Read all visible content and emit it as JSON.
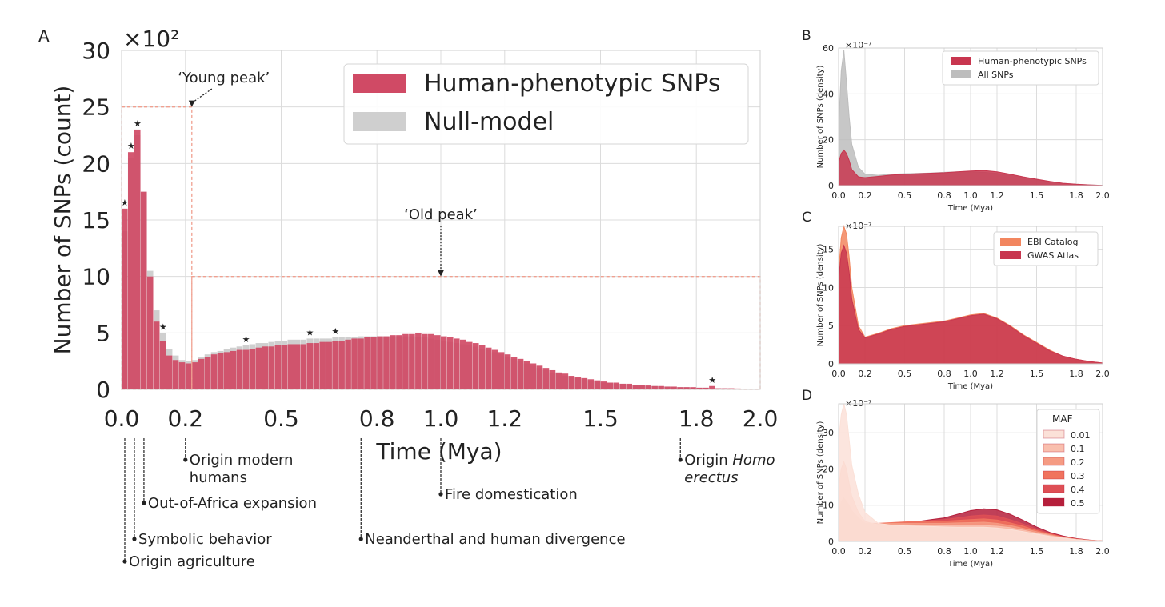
{
  "chart_data": [
    {
      "panel": "A",
      "type": "bar",
      "xlabel": "Time (Mya)",
      "ylabel": "Number of SNPs (count)",
      "y_scale_label": "×10²",
      "xlim": [
        0,
        2.0
      ],
      "ylim": [
        0,
        30
      ],
      "xticks": [
        0.0,
        0.2,
        0.5,
        0.8,
        1.0,
        1.2,
        1.5,
        1.8,
        2.0
      ],
      "xtick_labels": [
        "0.0",
        "0.2",
        "0.5",
        "0.8",
        "1.0",
        "1.2",
        "1.5",
        "1.8",
        "2.0"
      ],
      "yticks": [
        0,
        5,
        10,
        15,
        20,
        25,
        30
      ],
      "ytick_labels": [
        "0",
        "5",
        "10",
        "15",
        "20",
        "25",
        "30"
      ],
      "legend": [
        "Human-phenotypic SNPs",
        "Null-model"
      ],
      "bin_width": 0.02,
      "series": [
        {
          "name": "Human-phenotypic SNPs",
          "color": "#d04a65",
          "values": [
            16,
            21,
            23,
            17.5,
            10,
            6,
            4.3,
            3,
            2.6,
            2.4,
            2.3,
            2.4,
            2.7,
            2.9,
            3.1,
            3.2,
            3.3,
            3.4,
            3.5,
            3.5,
            3.6,
            3.7,
            3.8,
            3.8,
            3.9,
            3.9,
            4,
            4,
            4,
            4.1,
            4.1,
            4.2,
            4.2,
            4.3,
            4.3,
            4.4,
            4.5,
            4.5,
            4.6,
            4.6,
            4.7,
            4.7,
            4.8,
            4.8,
            4.9,
            4.9,
            5,
            4.9,
            4.9,
            4.8,
            4.7,
            4.6,
            4.5,
            4.4,
            4.2,
            4.1,
            3.9,
            3.7,
            3.5,
            3.3,
            3.1,
            2.9,
            2.7,
            2.5,
            2.3,
            2.1,
            1.9,
            1.7,
            1.5,
            1.4,
            1.2,
            1.1,
            1,
            0.9,
            0.8,
            0.7,
            0.6,
            0.6,
            0.5,
            0.5,
            0.4,
            0.4,
            0.35,
            0.3,
            0.3,
            0.25,
            0.25,
            0.2,
            0.2,
            0.2,
            0.15,
            0.15,
            0.3,
            0.1,
            0.1,
            0.1,
            0.08,
            0.06,
            0.05,
            0.04
          ]
        },
        {
          "name": "Null-model",
          "color": "#cfcfcf",
          "values": [
            14,
            20.5,
            22.5,
            17.5,
            10.5,
            7,
            5,
            3.6,
            3,
            2.6,
            2.5,
            2.6,
            2.9,
            3.1,
            3.3,
            3.4,
            3.6,
            3.7,
            3.8,
            3.9,
            4,
            4.1,
            4.1,
            4.2,
            4.3,
            4.3,
            4.4,
            4.4,
            4.4,
            4.5,
            4.5,
            4.5,
            4.5,
            4.6,
            4.6,
            4.6,
            4.6,
            4.7,
            4.7,
            4.7,
            4.7,
            4.7,
            4.7,
            4.7,
            4.7,
            4.7,
            4.6,
            4.6,
            4.5,
            4.4,
            4.3,
            4.2,
            4.1,
            4,
            3.9,
            3.8,
            3.6,
            3.5,
            3.3,
            3.1,
            2.9,
            2.7,
            2.5,
            2.3,
            2.1,
            1.9,
            1.7,
            1.5,
            1.4,
            1.2,
            1.1,
            1,
            0.9,
            0.8,
            0.7,
            0.6,
            0.6,
            0.5,
            0.5,
            0.4,
            0.4,
            0.35,
            0.3,
            0.3,
            0.25,
            0.25,
            0.2,
            0.2,
            0.2,
            0.15,
            0.15,
            0.15,
            0.1,
            0.1,
            0.1,
            0.08,
            0.06,
            0.05,
            0.04,
            0.03
          ]
        }
      ],
      "significance_star_bins": [
        0,
        1,
        2,
        6,
        19,
        29,
        33,
        92
      ],
      "star_symbol": "★",
      "regions": [
        {
          "label": "‘Young peak’",
          "x_range": [
            0,
            0.22
          ],
          "y_range": [
            0,
            25
          ],
          "label_at": [
            0.22,
            26.6
          ],
          "arrow_to": [
            0.22,
            25
          ]
        },
        {
          "label": "‘Old peak’",
          "x_range": [
            0.22,
            2.0
          ],
          "y_range": [
            0,
            10
          ],
          "label_at": [
            1.0,
            14.5
          ],
          "arrow_to": [
            1.0,
            10
          ]
        }
      ],
      "events": [
        {
          "x": 0.01,
          "text_lines": [
            "Origin agriculture"
          ],
          "row": 5
        },
        {
          "x": 0.04,
          "text_lines": [
            "Symbolic behavior"
          ],
          "row": 4
        },
        {
          "x": 0.07,
          "text_lines": [
            "Out-of-Africa expansion"
          ],
          "row": 2
        },
        {
          "x": 0.2,
          "text_lines": [
            "Origin modern",
            "humans"
          ],
          "row": 0
        },
        {
          "x": 0.75,
          "text_lines": [
            "Neanderthal and human divergence"
          ],
          "row": 4
        },
        {
          "x": 1.0,
          "text_lines": [
            "Fire domestication"
          ],
          "row": 1
        },
        {
          "x": 1.75,
          "text_lines": [
            "Origin ",
            "erectus"
          ],
          "italic_word": "Homo",
          "row": 0
        }
      ]
    },
    {
      "panel": "B",
      "type": "area",
      "xlabel": "Time (Mya)",
      "ylabel": "Number of SNPs (density)",
      "y_scale_label": "×10⁻⁷",
      "xlim": [
        0,
        2.0
      ],
      "ylim": [
        0,
        60
      ],
      "xticks": [
        0.0,
        0.2,
        0.5,
        0.8,
        1.0,
        1.2,
        1.5,
        1.8,
        2.0
      ],
      "xtick_labels": [
        "0.0",
        "0.2",
        "0.5",
        "0.8",
        "1.0",
        "1.2",
        "1.5",
        "1.8",
        "2.0"
      ],
      "yticks": [
        0,
        20,
        40,
        60
      ],
      "ytick_labels": [
        "0",
        "20",
        "40",
        "60"
      ],
      "x": [
        0,
        0.02,
        0.04,
        0.06,
        0.08,
        0.1,
        0.15,
        0.2,
        0.3,
        0.4,
        0.5,
        0.6,
        0.7,
        0.8,
        0.9,
        1.0,
        1.1,
        1.2,
        1.3,
        1.4,
        1.5,
        1.6,
        1.7,
        1.8,
        1.9,
        2.0
      ],
      "series": [
        {
          "name": "All SNPs",
          "color": "#bdbdbd",
          "values": [
            25,
            50,
            59,
            45,
            30,
            18,
            8,
            5,
            4.5,
            5,
            5.2,
            5.3,
            5.5,
            5.8,
            6,
            6,
            5.8,
            5.3,
            4.5,
            3.5,
            2.5,
            1.7,
            1,
            0.6,
            0.3,
            0.1
          ]
        },
        {
          "name": "Human-phenotypic SNPs",
          "color": "#c8364f",
          "values": [
            10,
            14,
            15.5,
            14,
            11,
            7,
            3.8,
            3.5,
            4,
            4.6,
            5,
            5.2,
            5.4,
            5.6,
            6,
            6.4,
            6.6,
            6,
            5,
            3.8,
            2.8,
            1.8,
            1,
            0.6,
            0.3,
            0.1
          ]
        }
      ],
      "legend": [
        "Human-phenotypic SNPs",
        "All SNPs"
      ]
    },
    {
      "panel": "C",
      "type": "area",
      "xlabel": "Time (Mya)",
      "ylabel": "Number of SNPs (density)",
      "y_scale_label": "×10⁻⁷",
      "xlim": [
        0,
        2.0
      ],
      "ylim": [
        0,
        18
      ],
      "xticks": [
        0.0,
        0.2,
        0.5,
        0.8,
        1.0,
        1.2,
        1.5,
        1.8,
        2.0
      ],
      "xtick_labels": [
        "0.0",
        "0.2",
        "0.5",
        "0.8",
        "1.0",
        "1.2",
        "1.5",
        "1.8",
        "2.0"
      ],
      "yticks": [
        0,
        5,
        10,
        15
      ],
      "ytick_labels": [
        "0",
        "5",
        "10",
        "15"
      ],
      "x": [
        0,
        0.02,
        0.04,
        0.06,
        0.08,
        0.1,
        0.15,
        0.2,
        0.3,
        0.4,
        0.5,
        0.6,
        0.7,
        0.8,
        0.9,
        1.0,
        1.1,
        1.2,
        1.3,
        1.4,
        1.5,
        1.6,
        1.7,
        1.8,
        1.9,
        2.0
      ],
      "series": [
        {
          "name": "EBI Catalog",
          "color": "#f2865f",
          "values": [
            12,
            16.5,
            18,
            17,
            14,
            10,
            5,
            3.5,
            4,
            4.6,
            5,
            5.2,
            5.4,
            5.6,
            6,
            6.4,
            6.6,
            6,
            5,
            3.8,
            2.8,
            1.8,
            1,
            0.6,
            0.3,
            0.1
          ]
        },
        {
          "name": "GWAS Atlas",
          "color": "#c8364f",
          "values": [
            11,
            14.5,
            15.5,
            14.5,
            12,
            8.5,
            4.5,
            3.4,
            3.9,
            4.5,
            4.9,
            5.1,
            5.3,
            5.5,
            5.9,
            6.3,
            6.5,
            5.9,
            4.9,
            3.7,
            2.7,
            1.7,
            1,
            0.6,
            0.3,
            0.1
          ]
        }
      ],
      "legend": [
        "EBI Catalog",
        "GWAS Atlas"
      ]
    },
    {
      "panel": "D",
      "type": "area",
      "xlabel": "Time (Mya)",
      "ylabel": "Number of SNPs (density)",
      "y_scale_label": "×10⁻⁷",
      "xlim": [
        0,
        2.0
      ],
      "ylim": [
        0,
        38
      ],
      "xticks": [
        0.0,
        0.2,
        0.5,
        0.8,
        1.0,
        1.2,
        1.5,
        1.8,
        2.0
      ],
      "xtick_labels": [
        "0.0",
        "0.2",
        "0.5",
        "0.8",
        "1.0",
        "1.2",
        "1.5",
        "1.8",
        "2.0"
      ],
      "yticks": [
        0,
        10,
        20,
        30
      ],
      "ytick_labels": [
        "0",
        "10",
        "20",
        "30"
      ],
      "x": [
        0,
        0.02,
        0.04,
        0.06,
        0.08,
        0.1,
        0.15,
        0.2,
        0.3,
        0.4,
        0.5,
        0.6,
        0.7,
        0.8,
        0.9,
        1.0,
        1.1,
        1.2,
        1.3,
        1.4,
        1.5,
        1.6,
        1.7,
        1.8,
        1.9,
        2.0
      ],
      "legend_title": "MAF",
      "legend": [
        "0.01",
        "0.1",
        "0.2",
        "0.3",
        "0.4",
        "0.5"
      ],
      "series": [
        {
          "name": "0.5",
          "color": "#b51f3b",
          "values": [
            2,
            3,
            3.5,
            3.5,
            3.5,
            3.5,
            3.5,
            3.5,
            4,
            4.5,
            5,
            5.5,
            6,
            6.5,
            7.5,
            8.5,
            9,
            8.7,
            7.5,
            5.8,
            4,
            2.5,
            1.5,
            0.8,
            0.4,
            0.1
          ]
        },
        {
          "name": "0.4",
          "color": "#de4f55",
          "values": [
            3,
            4,
            4.5,
            4.5,
            4.5,
            4.2,
            4,
            4,
            4.5,
            5,
            5.3,
            5.5,
            5.8,
            6,
            6.5,
            7,
            7.3,
            7,
            6,
            4.8,
            3.4,
            2.2,
            1.3,
            0.7,
            0.3,
            0.1
          ]
        },
        {
          "name": "0.3",
          "color": "#f0735e",
          "values": [
            5,
            7,
            8,
            7.5,
            7,
            6.3,
            5.5,
            5,
            5,
            5.2,
            5.4,
            5.5,
            5.5,
            5.6,
            5.8,
            6,
            6.2,
            5.9,
            5.1,
            4.2,
            3,
            2,
            1.2,
            0.6,
            0.3,
            0.1
          ]
        },
        {
          "name": "0.2",
          "color": "#f59b83",
          "values": [
            8,
            11,
            12,
            11,
            10,
            8.5,
            6.5,
            5,
            4.8,
            5,
            5,
            5,
            5,
            5,
            5.1,
            5.2,
            5.3,
            5,
            4.4,
            3.6,
            2.7,
            1.8,
            1.1,
            0.6,
            0.3,
            0.1
          ]
        },
        {
          "name": "0.1",
          "color": "#f9bfae",
          "values": [
            15,
            20,
            22,
            20,
            16,
            12.5,
            8,
            5.5,
            4.6,
            4.6,
            4.6,
            4.5,
            4.5,
            4.4,
            4.4,
            4.4,
            4.4,
            4.2,
            3.8,
            3.1,
            2.3,
            1.6,
            1,
            0.5,
            0.2,
            0.1
          ]
        },
        {
          "name": "0.01",
          "color": "#fbe1d8",
          "values": [
            28,
            35,
            38,
            35,
            28,
            21,
            13,
            8,
            5,
            4.5,
            4.3,
            4.2,
            4.1,
            4,
            3.9,
            3.9,
            3.9,
            3.7,
            3.3,
            2.7,
            2,
            1.4,
            0.9,
            0.5,
            0.2,
            0.1
          ]
        }
      ]
    }
  ]
}
